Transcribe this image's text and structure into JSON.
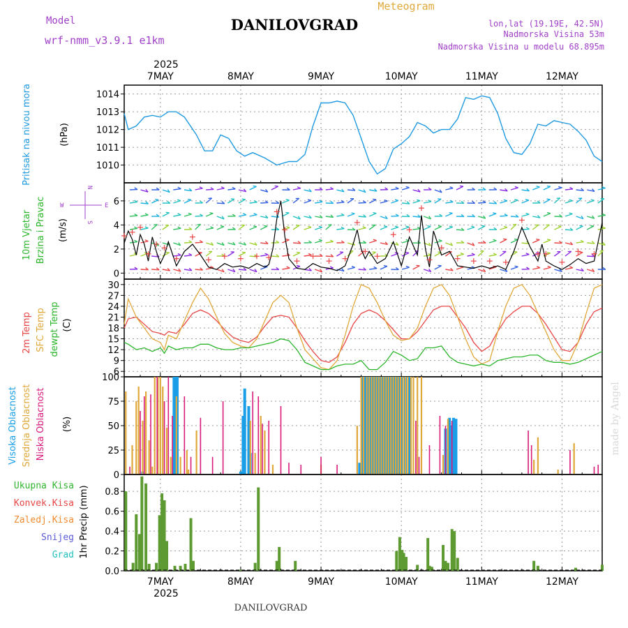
{
  "header": {
    "model_label": "Model",
    "model_name": "wrf-nmm_v3.9.1 e1km",
    "title": "DANILOVGRAD",
    "meteogram_label": "Meteogram",
    "lonlat": "lon,lat (19.19E, 42.5N)",
    "elevation": "Nadmorska Visina 53m",
    "model_elevation": "Nadmorska Visina u modelu 68.895m"
  },
  "footer": {
    "station": "DANILOVGRAD",
    "watermark": "made by Angel"
  },
  "colors": {
    "pressure": "#1f9ae0",
    "temp2m": "#e84545",
    "sfc_temp": "#e0a83a",
    "dewpoint": "#2bb52b",
    "high_cloud": "#1a9ee8",
    "mid_cloud": "#e0a83a",
    "low_cloud": "#d81b7a",
    "total_precip": "#31b531",
    "conv_precip": "#e84545",
    "freezing": "#f08a2e",
    "snow": "#5a5ad8",
    "hail": "#22c0c0",
    "wind_line": "#000000",
    "gust_marker": "#e84545",
    "grid": "#999999",
    "purple_text": "#a040c8"
  },
  "time_axis": {
    "year_label": "2025",
    "day_labels": [
      "7MAY",
      "8MAY",
      "9MAY",
      "10MAY",
      "11MAY",
      "12MAY"
    ]
  },
  "chart_data": [
    {
      "type": "line",
      "panel": "pressure",
      "ylabel_title": "Pritisak na nivou mora",
      "ylabel_unit": "(hPa)",
      "ylim": [
        1009,
        1014.5
      ],
      "yticks": [
        1010,
        1011,
        1012,
        1013,
        1014
      ],
      "grid": true,
      "x_days": [
        6.55,
        6.6,
        6.7,
        6.8,
        6.9,
        7.0,
        7.1,
        7.2,
        7.3,
        7.45,
        7.55,
        7.65,
        7.75,
        7.85,
        7.95,
        8.05,
        8.15,
        8.3,
        8.45,
        8.6,
        8.7,
        8.8,
        8.9,
        9.0,
        9.1,
        9.2,
        9.3,
        9.4,
        9.5,
        9.6,
        9.7,
        9.8,
        9.9,
        10.0,
        10.1,
        10.2,
        10.3,
        10.4,
        10.5,
        10.6,
        10.7,
        10.8,
        10.9,
        11.0,
        11.1,
        11.2,
        11.3,
        11.4,
        11.5,
        11.6,
        11.7,
        11.8,
        11.9,
        12.0,
        12.1,
        12.2,
        12.3,
        12.4,
        12.5
      ],
      "series": [
        {
          "values": [
            1012.9,
            1012.0,
            1012.2,
            1012.7,
            1012.8,
            1012.7,
            1013.0,
            1013.0,
            1012.7,
            1011.7,
            1010.8,
            1010.8,
            1011.7,
            1011.5,
            1010.8,
            1010.5,
            1010.7,
            1010.4,
            1010.0,
            1010.2,
            1010.2,
            1010.6,
            1012.2,
            1013.5,
            1013.5,
            1013.6,
            1013.5,
            1012.8,
            1011.5,
            1010.2,
            1009.5,
            1009.8,
            1010.9,
            1011.2,
            1011.6,
            1012.4,
            1012.2,
            1011.8,
            1012.0,
            1012.0,
            1012.6,
            1013.8,
            1013.7,
            1013.9,
            1013.8,
            1012.9,
            1011.5,
            1010.7,
            1010.6,
            1011.2,
            1012.3,
            1012.2,
            1012.5,
            1012.4,
            1012.3,
            1011.9,
            1011.4,
            1010.5,
            1010.2
          ]
        }
      ]
    },
    {
      "type": "line",
      "panel": "wind",
      "ylabel_title1": "10m Vjetar",
      "ylabel_title2": "Brzina i Pravac",
      "ylabel_unit": "(m/s)",
      "compass_n": "N",
      "compass_s": "S",
      "compass_e": "E",
      "compass_w": "W",
      "ylim": [
        -0.5,
        7.5
      ],
      "yticks": [
        0,
        2,
        4,
        6
      ],
      "grid": true,
      "x_days": [
        6.55,
        6.6,
        6.65,
        6.7,
        6.75,
        6.8,
        6.85,
        6.9,
        6.95,
        7.0,
        7.05,
        7.1,
        7.2,
        7.3,
        7.4,
        7.5,
        7.6,
        7.7,
        7.8,
        7.9,
        8.0,
        8.1,
        8.2,
        8.3,
        8.35,
        8.4,
        8.45,
        8.5,
        8.55,
        8.6,
        8.7,
        8.8,
        8.9,
        9.0,
        9.1,
        9.2,
        9.3,
        9.4,
        9.45,
        9.5,
        9.55,
        9.6,
        9.7,
        9.8,
        9.9,
        10.0,
        10.1,
        10.2,
        10.25,
        10.3,
        10.35,
        10.4,
        10.5,
        10.6,
        10.7,
        10.8,
        10.9,
        11.0,
        11.1,
        11.2,
        11.3,
        11.4,
        11.5,
        11.6,
        11.7,
        11.75,
        11.8,
        11.9,
        12.0,
        12.1,
        12.2,
        12.3,
        12.4,
        12.5
      ],
      "series": [
        {
          "values": [
            2.5,
            3.5,
            2.8,
            1.5,
            3.2,
            2.4,
            1.0,
            3.0,
            1.8,
            0.8,
            1.5,
            2.6,
            0.6,
            1.8,
            2.4,
            1.5,
            0.5,
            0.3,
            0.8,
            0.5,
            0.6,
            0.4,
            0.8,
            0.5,
            0.7,
            2.0,
            4.5,
            6.0,
            3.0,
            1.2,
            0.4,
            0.3,
            0.8,
            0.5,
            0.4,
            0.2,
            0.6,
            2.4,
            3.6,
            2.0,
            1.2,
            1.8,
            0.8,
            1.2,
            2.6,
            0.6,
            3.0,
            1.5,
            4.8,
            2.0,
            0.5,
            3.5,
            1.5,
            1.8,
            0.6,
            0.5,
            0.4,
            0.6,
            0.4,
            0.6,
            0.3,
            1.8,
            3.8,
            2.2,
            1.0,
            2.4,
            1.0,
            0.6,
            0.3,
            0.7,
            1.2,
            0.8,
            1.0,
            4.2
          ]
        }
      ]
    },
    {
      "type": "line",
      "panel": "temperature",
      "ylabel_t2m": "2m Temp",
      "ylabel_sfc": "SFC Temp",
      "ylabel_dew": "dewpt Temp",
      "ylabel_unit": "(C)",
      "ylim": [
        4.5,
        31.5
      ],
      "yticks": [
        6,
        9,
        12,
        15,
        18,
        21,
        24,
        27,
        30
      ],
      "grid": true,
      "x_days": [
        6.55,
        6.6,
        6.7,
        6.8,
        6.9,
        7.0,
        7.05,
        7.1,
        7.2,
        7.3,
        7.4,
        7.5,
        7.6,
        7.7,
        7.8,
        7.9,
        8.0,
        8.1,
        8.2,
        8.3,
        8.4,
        8.5,
        8.6,
        8.7,
        8.8,
        8.9,
        9.0,
        9.1,
        9.2,
        9.3,
        9.4,
        9.5,
        9.6,
        9.7,
        9.8,
        9.9,
        10.0,
        10.1,
        10.2,
        10.3,
        10.4,
        10.5,
        10.6,
        10.7,
        10.8,
        10.9,
        11.0,
        11.1,
        11.2,
        11.3,
        11.4,
        11.5,
        11.6,
        11.7,
        11.8,
        11.9,
        12.0,
        12.1,
        12.2,
        12.3,
        12.4,
        12.5
      ],
      "series": [
        {
          "name": "2m Temp",
          "values": [
            18,
            20.5,
            21,
            19,
            17,
            16.5,
            16,
            17,
            16.5,
            19,
            22,
            23,
            22,
            20,
            17.5,
            15.5,
            14.5,
            14,
            15.5,
            18.5,
            21,
            21.5,
            21,
            18,
            14.5,
            11.5,
            9,
            8.5,
            10,
            14,
            19,
            22,
            23,
            22,
            20,
            17.5,
            15,
            15,
            17,
            20,
            23,
            24,
            24,
            21,
            18,
            14,
            11.5,
            13,
            17,
            20.5,
            22.5,
            24,
            24,
            22,
            19,
            15.5,
            12,
            11.5,
            14,
            19,
            22.5,
            23.5
          ]
        },
        {
          "name": "SFC Temp",
          "values": [
            19,
            26,
            21,
            18,
            15,
            14,
            12,
            16,
            15,
            20,
            25,
            29,
            26,
            21,
            16.5,
            14,
            13,
            12.5,
            15,
            20,
            25,
            27,
            25,
            18,
            12,
            9.5,
            7,
            6.5,
            9,
            16,
            24,
            30,
            29,
            25,
            20,
            16,
            14.5,
            15,
            18,
            24,
            29,
            30,
            27,
            21,
            15,
            10,
            8,
            9,
            17,
            24,
            29,
            30,
            27,
            22,
            17,
            12,
            9,
            9,
            14,
            22,
            29,
            30
          ]
        },
        {
          "name": "dewpt Temp",
          "values": [
            14,
            13.5,
            12,
            12.5,
            11.5,
            12.5,
            11,
            13,
            12,
            12.5,
            12.5,
            13.5,
            13.5,
            12.5,
            12,
            12,
            12.5,
            12.5,
            13,
            13.5,
            14,
            15,
            14.5,
            12,
            8.5,
            7.5,
            6.5,
            6.5,
            7.5,
            8,
            8,
            9,
            6.5,
            6.5,
            8.5,
            11.5,
            10.5,
            9,
            9.5,
            12.5,
            12.5,
            13,
            10,
            8.5,
            8,
            7.5,
            8,
            7.5,
            9,
            9.5,
            10,
            10,
            10.5,
            10.5,
            9,
            8.5,
            8.5,
            8,
            8.5,
            9.5,
            10.5,
            11.5
          ]
        }
      ]
    },
    {
      "type": "bar",
      "panel": "clouds",
      "ylabel_high": "Visoka Oblacnost",
      "ylabel_mid": "Srednja Oblacnost",
      "ylabel_low": "Niska Oblacnost",
      "ylabel_unit": "(%)",
      "ylim": [
        0,
        100
      ],
      "yticks": [
        0,
        25,
        50,
        75,
        100
      ],
      "grid": true,
      "series": [
        {
          "name": "Visoka Oblacnost",
          "x_days": [
            6.78,
            7.17,
            7.19,
            7.21,
            8.0,
            8.03,
            8.05,
            8.1,
            8.12,
            9.48,
            9.52,
            9.55,
            9.58,
            9.61,
            9.64,
            9.67,
            9.7,
            9.73,
            9.76,
            9.79,
            9.82,
            9.85,
            9.88,
            9.91,
            9.94,
            9.97,
            10.0,
            10.05,
            10.1,
            10.55,
            10.6,
            10.62,
            10.65,
            10.68
          ],
          "values": [
            3,
            100,
            100,
            100,
            3,
            60,
            88,
            70,
            22,
            12,
            100,
            100,
            100,
            100,
            100,
            100,
            100,
            100,
            100,
            100,
            100,
            100,
            100,
            100,
            100,
            100,
            100,
            100,
            100,
            47,
            58,
            50,
            58,
            57
          ]
        },
        {
          "name": "Srednja Oblacnost",
          "x_days": [
            6.57,
            6.65,
            6.7,
            6.73,
            6.78,
            6.82,
            6.86,
            6.9,
            6.93,
            6.97,
            7.0,
            7.03,
            7.08,
            7.13,
            7.2,
            7.25,
            7.33,
            7.35,
            7.45,
            8.12,
            8.18,
            8.25,
            8.3,
            8.4,
            9.0,
            9.45,
            9.5,
            9.53,
            9.57,
            9.6,
            9.63,
            9.66,
            9.69,
            9.72,
            9.75,
            9.78,
            9.81,
            9.84,
            9.87,
            9.9,
            9.93,
            9.96,
            9.99,
            10.02,
            10.05,
            10.08,
            10.12,
            10.15,
            10.2,
            10.25,
            10.52,
            10.58,
            11.65,
            11.7,
            11.95,
            12.15
          ],
          "values": [
            85,
            30,
            75,
            90,
            55,
            85,
            35,
            8,
            100,
            100,
            100,
            90,
            48,
            18,
            80,
            18,
            25,
            5,
            45,
            55,
            22,
            60,
            45,
            10,
            10,
            50,
            100,
            100,
            100,
            100,
            100,
            100,
            100,
            100,
            100,
            100,
            100,
            100,
            100,
            100,
            100,
            100,
            100,
            100,
            100,
            100,
            100,
            100,
            100,
            100,
            20,
            57,
            15,
            38,
            5,
            32
          ]
        },
        {
          "name": "Niska Oblacnost",
          "x_days": [
            6.62,
            6.75,
            6.8,
            6.88,
            6.96,
            7.05,
            7.1,
            7.15,
            7.3,
            7.38,
            7.5,
            7.65,
            7.78,
            8.15,
            8.22,
            8.27,
            8.35,
            8.5,
            8.6,
            8.75,
            9.0,
            9.2,
            10.18,
            10.22,
            10.35,
            10.48,
            10.55,
            10.63,
            11.58,
            11.62,
            12.1,
            12.4,
            12.45
          ],
          "values": [
            8,
            65,
            80,
            82,
            100,
            75,
            100,
            60,
            80,
            18,
            58,
            18,
            75,
            85,
            80,
            52,
            55,
            70,
            12,
            10,
            18,
            10,
            55,
            18,
            30,
            60,
            50,
            55,
            45,
            30,
            25,
            8,
            10
          ]
        }
      ]
    },
    {
      "type": "bar",
      "panel": "precipitation",
      "legend": [
        "Ukupna Kisa",
        "Konvek.Kisa",
        "Zaledj.Kisa",
        "Snijeg",
        "Grad"
      ],
      "ylabel_unit": "1hr Precip (mm)",
      "ylim": [
        0,
        0.97
      ],
      "yticks": [
        0,
        0.2,
        0.4,
        0.6,
        0.8
      ],
      "grid": true,
      "series": [
        {
          "name": "Ukupna Kisa",
          "x_days": [
            6.57,
            6.66,
            6.7,
            6.74,
            6.77,
            6.82,
            6.86,
            6.95,
            6.99,
            7.02,
            7.05,
            7.08,
            7.18,
            7.25,
            7.31,
            7.38,
            7.41,
            8.0,
            8.18,
            8.22,
            8.45,
            8.48,
            8.68,
            9.94,
            9.98,
            10.01,
            10.03,
            10.06,
            10.2,
            10.33,
            10.35,
            10.38,
            10.52,
            10.55,
            10.58,
            10.63,
            10.66,
            10.7,
            11.65,
            11.7,
            12.17,
            12.5
          ],
          "values": [
            0.8,
            0.08,
            0.57,
            0.37,
            0.95,
            0.88,
            0.07,
            0.08,
            0.56,
            0.78,
            0.71,
            0.3,
            0.05,
            0.05,
            0.07,
            0.53,
            0.1,
            0.01,
            0.08,
            0.84,
            0.1,
            0.24,
            0.1,
            0.2,
            0.34,
            0.21,
            0.18,
            0.14,
            0.06,
            0.33,
            0.05,
            0.04,
            0.26,
            0.1,
            0.08,
            0.42,
            0.4,
            0.13,
            0.1,
            0.05,
            0.03,
            0.06
          ]
        }
      ]
    }
  ]
}
